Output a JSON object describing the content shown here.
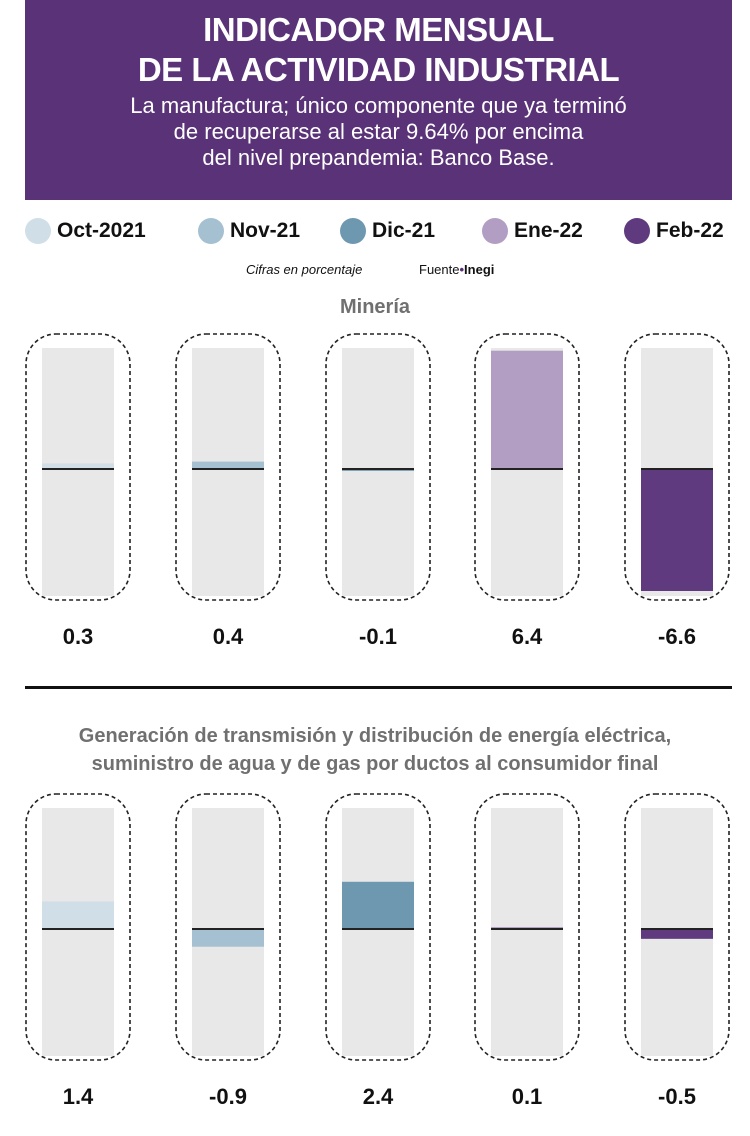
{
  "header": {
    "title_line1": "INDICADOR MENSUAL",
    "title_line2": "DE LA ACTIVIDAD INDUSTRIAL",
    "subtitle_line1": "La manufactura; único componente que ya terminó",
    "subtitle_line2": "de recuperarse al estar 9.64% por encima",
    "subtitle_line3": "del nivel prepandemia: Banco Base."
  },
  "legend": [
    {
      "label": "Oct-2021",
      "color": "#cfdee7"
    },
    {
      "label": "Nov-21",
      "color": "#a4c0d1"
    },
    {
      "label": "Dic-21",
      "color": "#6e98b0"
    },
    {
      "label": "Ene-22",
      "color": "#b29ec3"
    },
    {
      "label": "Feb-22",
      "color": "#5f3a7e"
    }
  ],
  "notes": {
    "units": "Cifras en porcentaje",
    "source_prefix": "Fuente",
    "source_bullet": "•",
    "source_name": "Inegi"
  },
  "chart_data": [
    {
      "type": "bar",
      "title": "Minería",
      "categories": [
        "Oct-2021",
        "Nov-21",
        "Dic-21",
        "Ene-22",
        "Feb-22"
      ],
      "values": [
        0.3,
        0.4,
        -0.1,
        6.4,
        -6.6
      ],
      "value_labels": [
        "0.3",
        "0.4",
        "-0.1",
        "6.4",
        "-6.6"
      ],
      "ylim": [
        -6.6,
        6.4
      ],
      "xlabel": "",
      "ylabel": ""
    },
    {
      "type": "bar",
      "title_line1": "Generación de transmisión y distribución de energía eléctrica,",
      "title_line2": "suministro de agua y de gas por ductos al consumidor final",
      "categories": [
        "Oct-2021",
        "Nov-21",
        "Dic-21",
        "Ene-22",
        "Feb-22"
      ],
      "values": [
        1.4,
        -0.9,
        2.4,
        0.1,
        -0.5
      ],
      "value_labels": [
        "1.4",
        "-0.9",
        "2.4",
        "0.1",
        "-0.5"
      ],
      "ylim": [
        -6.2,
        6.2
      ],
      "xlabel": "",
      "ylabel": ""
    }
  ]
}
